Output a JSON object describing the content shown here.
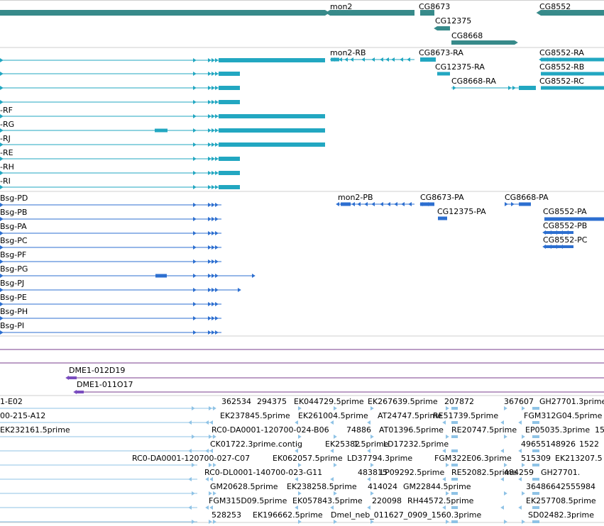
{
  "colors": {
    "gene": "#378a8a",
    "transcript": "#22a7c1",
    "protein": "#2d6fd0",
    "clone": "#7a4dbf",
    "clone_line": "#7a3d8c",
    "est": "#8fc3e6",
    "divider": "#cfcfcf"
  },
  "tracks": {
    "genes": {
      "labels": [
        "mon2",
        "CG8673",
        "CG12375",
        "CG8668",
        "CG8552"
      ]
    },
    "transcripts": {
      "labels": [
        "mon2-RB",
        "CG8673-RA",
        "CG12375-RA",
        "CG8668-RA",
        "CG8552-RA",
        "CG8552-RB",
        "CG8552-RC",
        "-RF",
        "-RG",
        "-RJ",
        "-RE",
        "-RH",
        "-RI"
      ]
    },
    "proteins": {
      "labels": [
        "Bsg-PD",
        "Bsg-PB",
        "Bsg-PA",
        "Bsg-PC",
        "Bsg-PF",
        "Bsg-PG",
        "Bsg-PJ",
        "Bsg-PE",
        "Bsg-PH",
        "Bsg-PI",
        "mon2-PB",
        "CG8673-PA",
        "CG8668-PA",
        "CG12375-PA",
        "CG8552-PA",
        "CG8552-PB",
        "CG8552-PC"
      ]
    },
    "clones": {
      "labels": [
        "DME1-012D19",
        "DME1-011O17"
      ]
    },
    "ests": {
      "rows": [
        [
          "1-E02",
          "362534",
          "294375",
          "EK044729.5prime",
          "EK267639.5prime",
          "207872",
          "367607",
          "GH27701.3prime"
        ],
        [
          "00-215-A12",
          "EK237845.5prime",
          "EK261004.5prime",
          "AT24747.5prime",
          "RE51739.5prime",
          "FGM312G04.5prime"
        ],
        [
          "EK232161.5prime",
          "RC0-DA0001-120700-024-B06",
          "74886",
          "AT01396.5prime",
          "RE20747.5prime",
          "EP05035.3prime",
          "15"
        ],
        [
          "CK01722.3prime.contig",
          "EK25382",
          "1.5prime",
          "LD17232.5prime",
          "49655148926",
          "1522"
        ],
        [
          "RC0-DA0001-120700-027-C07",
          "EK062057.5prime",
          "LD37794.3prime",
          "FGM322E06.3prime",
          "515309",
          "EK213207.5"
        ],
        [
          "RC0-DL0001-140700-023-G11",
          "483815",
          "LP09292.5prime",
          "RE52082.5prime",
          "484259",
          "GH27701."
        ],
        [
          "GM20628.5prime",
          "EK238258.5prime",
          "414024",
          "GM22844.5prime",
          "36486642555984"
        ],
        [
          "FGM315D09.5prime",
          "EK057843.5prime",
          "220098",
          "RH44572.5prime",
          "EK257708.5prime"
        ],
        [
          "528253",
          "EK196662.5prime",
          "Dmel_neb_011627_0909_1560.3prime",
          "SD02482.3prime"
        ]
      ]
    }
  }
}
